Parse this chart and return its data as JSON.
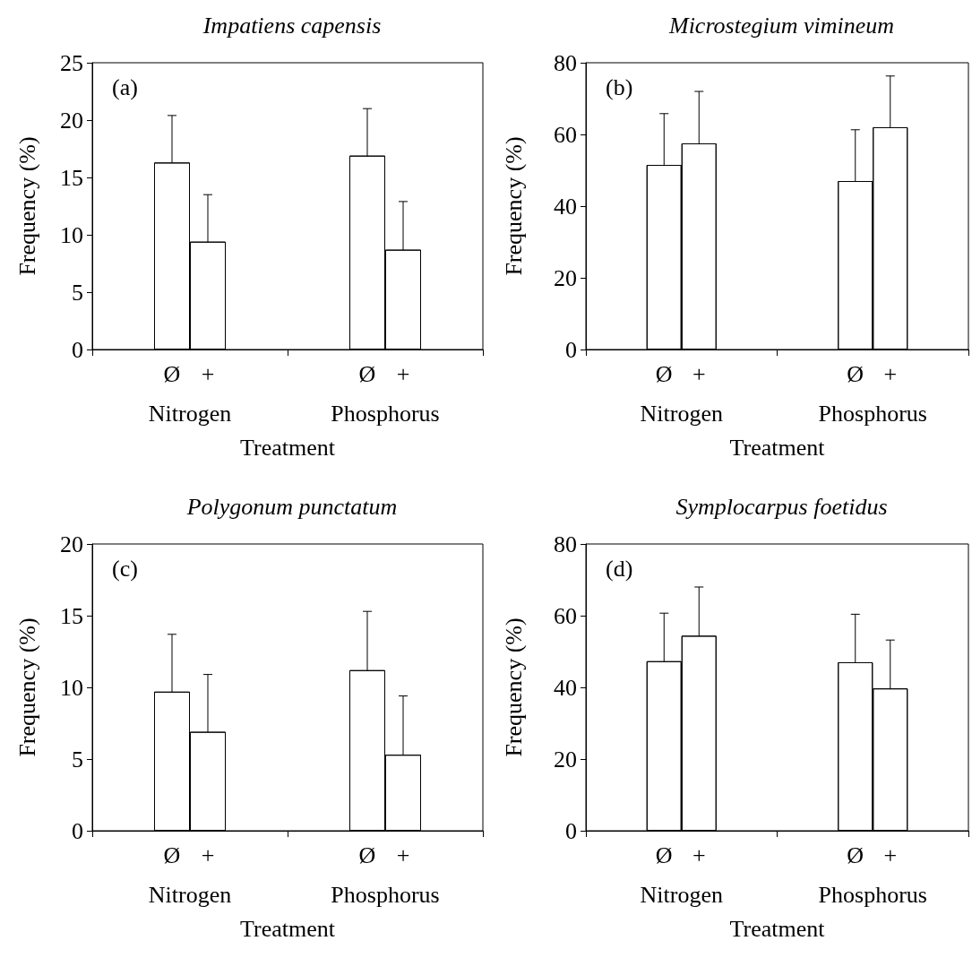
{
  "chart_data": [
    {
      "type": "bar",
      "title": "Impatiens capensis",
      "xlabel": "Treatment",
      "ylabel": "Frequency (%)",
      "annotations": [
        "(a)"
      ],
      "categories": [
        "Nitrogen",
        "Phosphorus"
      ],
      "ylim": [
        0,
        25
      ],
      "yticks": [
        0,
        5,
        10,
        15,
        20,
        25
      ],
      "grid": false,
      "legend": false,
      "series": [
        {
          "name": "Ø",
          "values": [
            16.3,
            16.9
          ],
          "errors": [
            4.1,
            4.1
          ]
        },
        {
          "name": "+",
          "values": [
            9.4,
            8.7
          ],
          "errors": [
            4.1,
            4.2
          ]
        }
      ]
    },
    {
      "type": "bar",
      "title": "Microstegium vimineum",
      "xlabel": "Treatment",
      "ylabel": "Frequency (%)",
      "annotations": [
        "(b)"
      ],
      "categories": [
        "Nitrogen",
        "Phosphorus"
      ],
      "ylim": [
        0,
        80
      ],
      "yticks": [
        0,
        20,
        40,
        60,
        80
      ],
      "grid": false,
      "legend": false,
      "series": [
        {
          "name": "Ø",
          "values": [
            51.5,
            47
          ],
          "errors": [
            14.3,
            14.3
          ]
        },
        {
          "name": "+",
          "values": [
            57.5,
            62
          ],
          "errors": [
            14.5,
            14.3
          ]
        }
      ]
    },
    {
      "type": "bar",
      "title": "Polygonum punctatum",
      "xlabel": "Treatment",
      "ylabel": "Frequency (%)",
      "annotations": [
        "(c)"
      ],
      "categories": [
        "Nitrogen",
        "Phosphorus"
      ],
      "ylim": [
        0,
        20
      ],
      "yticks": [
        0,
        5,
        10,
        15,
        20
      ],
      "grid": false,
      "legend": false,
      "series": [
        {
          "name": "Ø",
          "values": [
            9.7,
            11.2
          ],
          "errors": [
            4.0,
            4.1
          ]
        },
        {
          "name": "+",
          "values": [
            6.9,
            5.3
          ],
          "errors": [
            4.0,
            4.1
          ]
        }
      ]
    },
    {
      "type": "bar",
      "title": "Symplocarpus foetidus",
      "xlabel": "Treatment",
      "ylabel": "Frequency (%)",
      "annotations": [
        "(d)"
      ],
      "categories": [
        "Nitrogen",
        "Phosphorus"
      ],
      "ylim": [
        0,
        80
      ],
      "yticks": [
        0,
        20,
        40,
        60,
        80
      ],
      "grid": false,
      "legend": false,
      "series": [
        {
          "name": "Ø",
          "values": [
            47.3,
            47
          ],
          "errors": [
            13.4,
            13.4
          ]
        },
        {
          "name": "+",
          "values": [
            54.4,
            39.7
          ],
          "errors": [
            13.6,
            13.5
          ]
        }
      ]
    }
  ]
}
